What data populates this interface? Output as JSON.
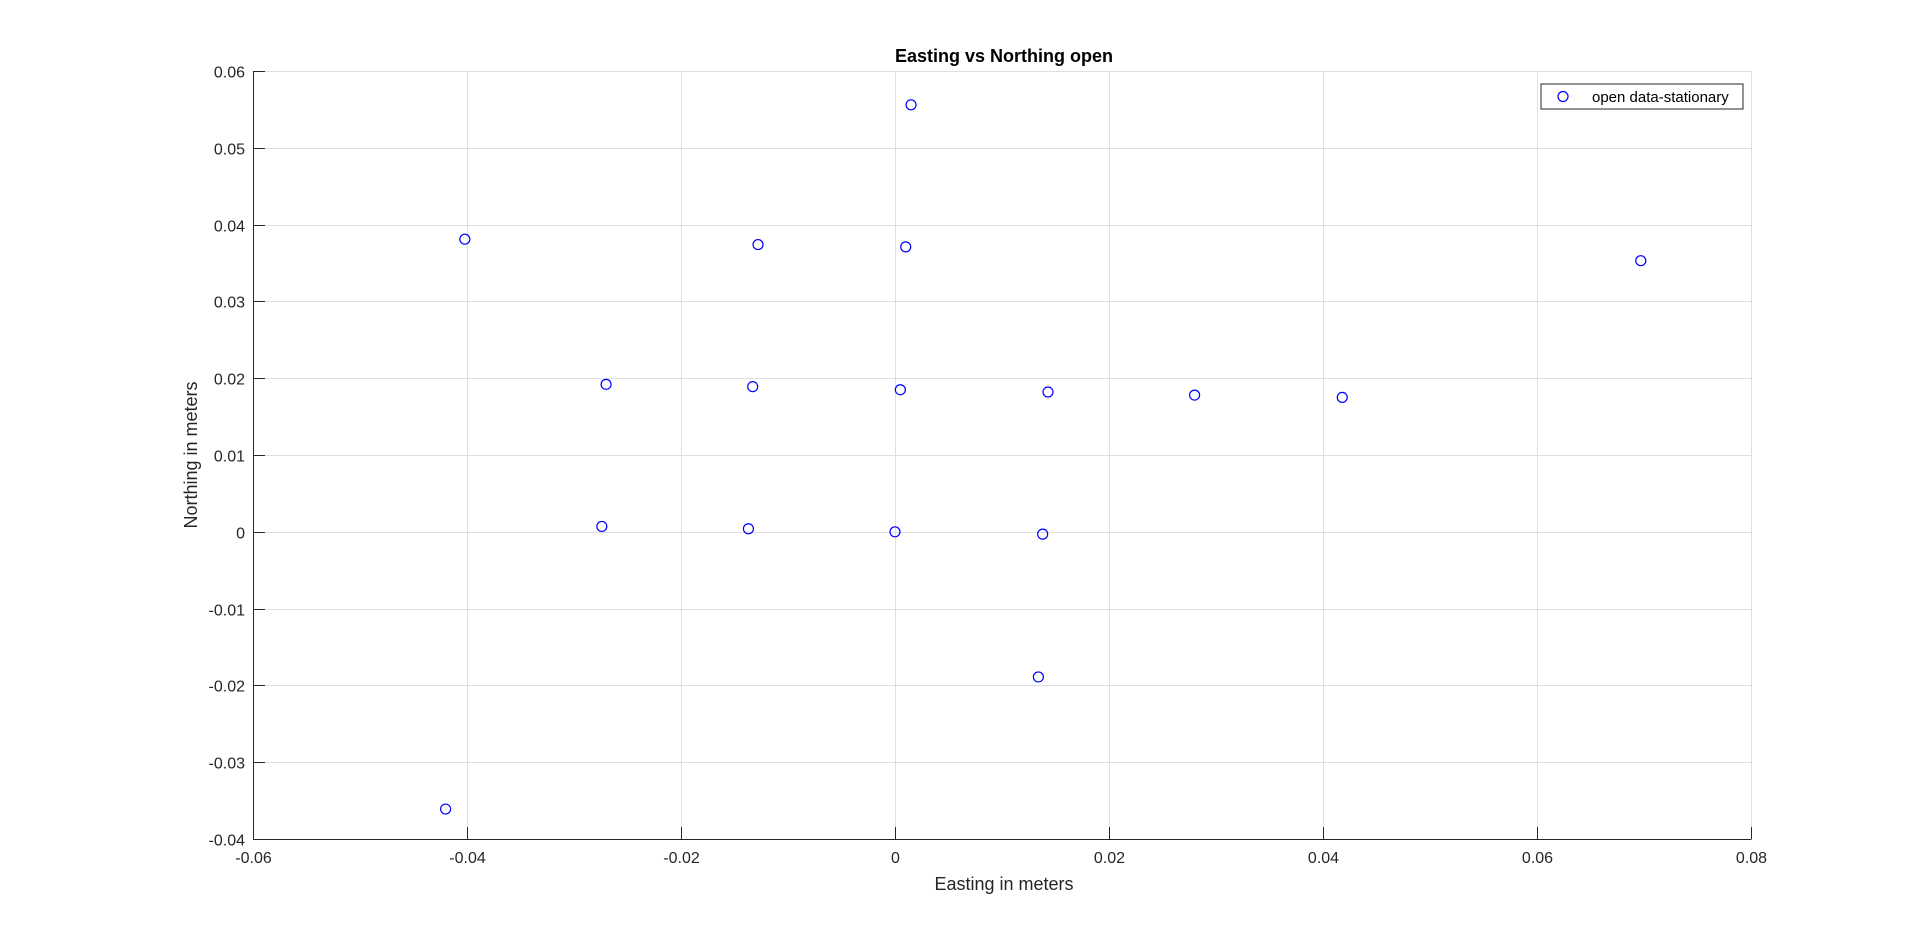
{
  "chart_data": {
    "type": "scatter",
    "title": "Easting vs Northing open",
    "xlabel": "Easting in meters",
    "ylabel": "Northing in meters",
    "xlim": [
      -0.06,
      0.08
    ],
    "ylim": [
      -0.04,
      0.06
    ],
    "x_ticks": [
      -0.06,
      -0.04,
      -0.02,
      0,
      0.02,
      0.04,
      0.06,
      0.08
    ],
    "y_ticks": [
      -0.04,
      -0.03,
      -0.02,
      -0.01,
      0,
      0.01,
      0.02,
      0.03,
      0.04,
      0.05,
      0.06
    ],
    "x_tick_labels": [
      "-0.06",
      "-0.04",
      "-0.02",
      "0",
      "0.02",
      "0.04",
      "0.06",
      "0.08"
    ],
    "y_tick_labels": [
      "-0.04",
      "-0.03",
      "-0.02",
      "-0.01",
      "0",
      "0.01",
      "0.02",
      "0.03",
      "0.04",
      "0.05",
      "0.06"
    ],
    "grid": true,
    "legend_position": "top-right",
    "series": [
      {
        "name": "open data-stationary",
        "marker": "circle",
        "color": "#0000ff",
        "points": [
          {
            "x": 0.0015,
            "y": 0.0556
          },
          {
            "x": -0.0402,
            "y": 0.0381
          },
          {
            "x": -0.0128,
            "y": 0.0374
          },
          {
            "x": 0.001,
            "y": 0.0371
          },
          {
            "x": 0.0697,
            "y": 0.0353
          },
          {
            "x": -0.027,
            "y": 0.0192
          },
          {
            "x": -0.0133,
            "y": 0.0189
          },
          {
            "x": 0.0005,
            "y": 0.0185
          },
          {
            "x": 0.0143,
            "y": 0.0182
          },
          {
            "x": 0.028,
            "y": 0.0178
          },
          {
            "x": 0.0418,
            "y": 0.0175
          },
          {
            "x": -0.0274,
            "y": 0.0007
          },
          {
            "x": -0.0137,
            "y": 0.0004
          },
          {
            "x": 0.0,
            "y": 0.0
          },
          {
            "x": 0.0138,
            "y": -0.0003
          },
          {
            "x": 0.0134,
            "y": -0.0189
          },
          {
            "x": -0.042,
            "y": -0.0361
          }
        ]
      }
    ]
  }
}
